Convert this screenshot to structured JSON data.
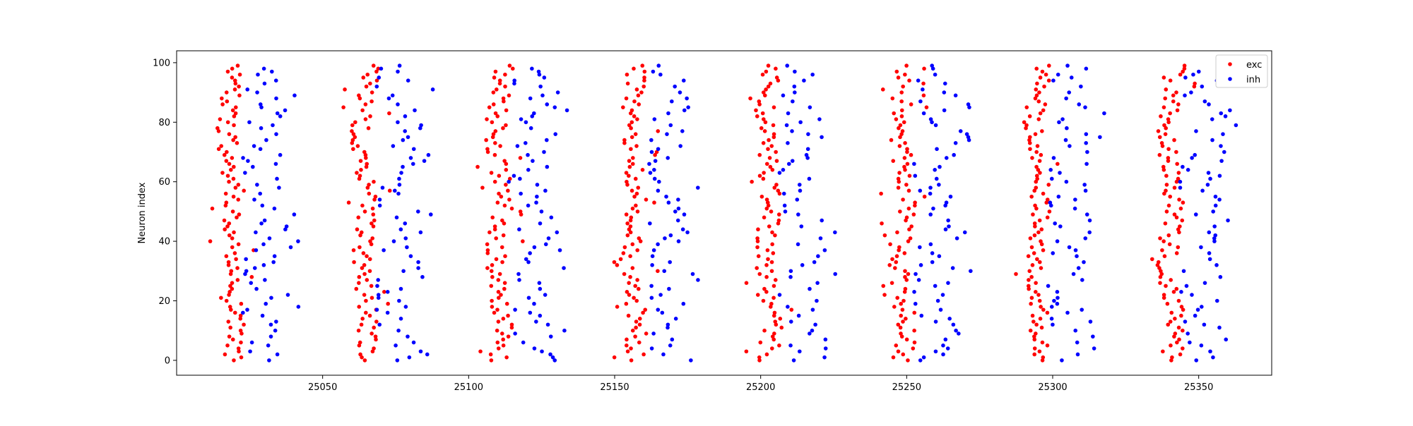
{
  "chart_data": {
    "type": "scatter",
    "title": "",
    "xlabel": "",
    "ylabel": "Neuron index",
    "xlim": [
      25000,
      25375
    ],
    "ylim": [
      -5,
      104
    ],
    "xticks": [
      25050,
      25100,
      25150,
      25200,
      25250,
      25300,
      25350
    ],
    "yticks": [
      0,
      20,
      40,
      60,
      80,
      100
    ],
    "grid": false,
    "legend": "top-right",
    "colors": {
      "exc": "#ff0000",
      "inh": "#0000ff"
    },
    "bursts": [
      25018,
      25064,
      25110,
      25156,
      25202,
      25248,
      25294,
      25340
    ],
    "series": [
      {
        "name": "exc",
        "neurons": [
          0,
          99
        ],
        "offset_range": [
          -3,
          4
        ],
        "outlier_offsets": [
          -7,
          9
        ]
      },
      {
        "name": "inh",
        "neurons": [
          0,
          99
        ],
        "offset_range": [
          5,
          19
        ],
        "outlier_offsets": [
          20,
          24
        ]
      }
    ]
  }
}
